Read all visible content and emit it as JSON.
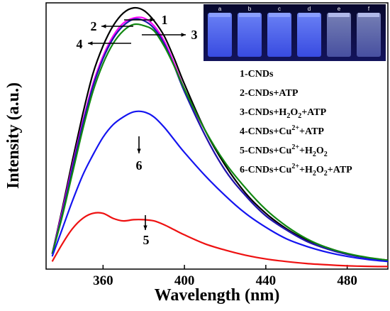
{
  "chart_data": {
    "type": "line",
    "xlabel": "Wavelength (nm)",
    "ylabel": "Intensity (a.u.)",
    "xlim": [
      332,
      500
    ],
    "ylim": [
      0,
      1.05
    ],
    "x_ticks": [
      "360",
      "400",
      "440",
      "480"
    ],
    "x": [
      335,
      340,
      345,
      350,
      355,
      360,
      365,
      370,
      375,
      380,
      385,
      390,
      395,
      400,
      410,
      420,
      430,
      440,
      450,
      460,
      470,
      480,
      490,
      500
    ],
    "series": [
      {
        "name": "1",
        "color": "#000000",
        "values": [
          0.06,
          0.24,
          0.43,
          0.61,
          0.77,
          0.88,
          0.96,
          1.01,
          1.03,
          1.02,
          0.98,
          0.92,
          0.83,
          0.73,
          0.55,
          0.41,
          0.3,
          0.22,
          0.16,
          0.115,
          0.085,
          0.06,
          0.045,
          0.035
        ]
      },
      {
        "name": "2",
        "color": "#ff00ff",
        "values": [
          0.06,
          0.23,
          0.41,
          0.58,
          0.73,
          0.84,
          0.92,
          0.97,
          0.99,
          0.99,
          0.96,
          0.9,
          0.81,
          0.71,
          0.53,
          0.39,
          0.29,
          0.21,
          0.155,
          0.11,
          0.08,
          0.058,
          0.044,
          0.034
        ]
      },
      {
        "name": "3",
        "color": "#1a1aa8",
        "values": [
          0.06,
          0.22,
          0.4,
          0.57,
          0.72,
          0.83,
          0.91,
          0.96,
          0.985,
          0.98,
          0.95,
          0.89,
          0.8,
          0.7,
          0.53,
          0.39,
          0.29,
          0.21,
          0.155,
          0.11,
          0.08,
          0.058,
          0.044,
          0.034
        ]
      },
      {
        "name": "4",
        "color": "#118811",
        "values": [
          0.06,
          0.21,
          0.38,
          0.55,
          0.7,
          0.81,
          0.89,
          0.94,
          0.965,
          0.96,
          0.94,
          0.88,
          0.8,
          0.71,
          0.55,
          0.42,
          0.32,
          0.235,
          0.17,
          0.12,
          0.085,
          0.062,
          0.046,
          0.035
        ]
      },
      {
        "name": "5",
        "color": "#ee1111",
        "values": [
          0.03,
          0.1,
          0.16,
          0.2,
          0.22,
          0.22,
          0.2,
          0.19,
          0.195,
          0.195,
          0.19,
          0.175,
          0.155,
          0.135,
          0.1,
          0.075,
          0.055,
          0.04,
          0.03,
          0.022,
          0.017,
          0.013,
          0.011,
          0.01
        ]
      },
      {
        "name": "6",
        "color": "#1414f0",
        "values": [
          0.05,
          0.16,
          0.27,
          0.37,
          0.45,
          0.52,
          0.57,
          0.6,
          0.62,
          0.62,
          0.6,
          0.56,
          0.51,
          0.46,
          0.37,
          0.29,
          0.22,
          0.165,
          0.12,
          0.09,
          0.067,
          0.05,
          0.038,
          0.03
        ]
      }
    ],
    "legend": [
      {
        "parts": [
          {
            "t": "1-CNDs"
          }
        ]
      },
      {
        "parts": [
          {
            "t": "2-CNDs+ATP"
          }
        ]
      },
      {
        "parts": [
          {
            "t": "3-CNDs+H"
          },
          {
            "t": "2",
            "s": "sub"
          },
          {
            "t": "O"
          },
          {
            "t": "2",
            "s": "sub"
          },
          {
            "t": "+ATP"
          }
        ]
      },
      {
        "parts": [
          {
            "t": "4-CNDs+Cu"
          },
          {
            "t": "2+",
            "s": "sup"
          },
          {
            "t": "+ATP"
          }
        ]
      },
      {
        "parts": [
          {
            "t": "5-CNDs+Cu"
          },
          {
            "t": "2+",
            "s": "sup"
          },
          {
            "t": "+H"
          },
          {
            "t": "2",
            "s": "sub"
          },
          {
            "t": "O"
          },
          {
            "t": "2",
            "s": "sub"
          }
        ]
      },
      {
        "parts": [
          {
            "t": "6-CNDs+Cu"
          },
          {
            "t": "2+",
            "s": "sup"
          },
          {
            "t": "+H"
          },
          {
            "t": "2",
            "s": "sub"
          },
          {
            "t": "O"
          },
          {
            "t": "2",
            "s": "sub"
          },
          {
            "t": "+ATP"
          }
        ]
      }
    ],
    "legend_placement": "right",
    "markers": [
      "1",
      "2",
      "3",
      "4",
      "5",
      "6"
    ],
    "inset": {
      "description": "photo of six vials under UV light",
      "vial_labels": [
        "a",
        "b",
        "c",
        "d",
        "e",
        "f"
      ]
    }
  }
}
